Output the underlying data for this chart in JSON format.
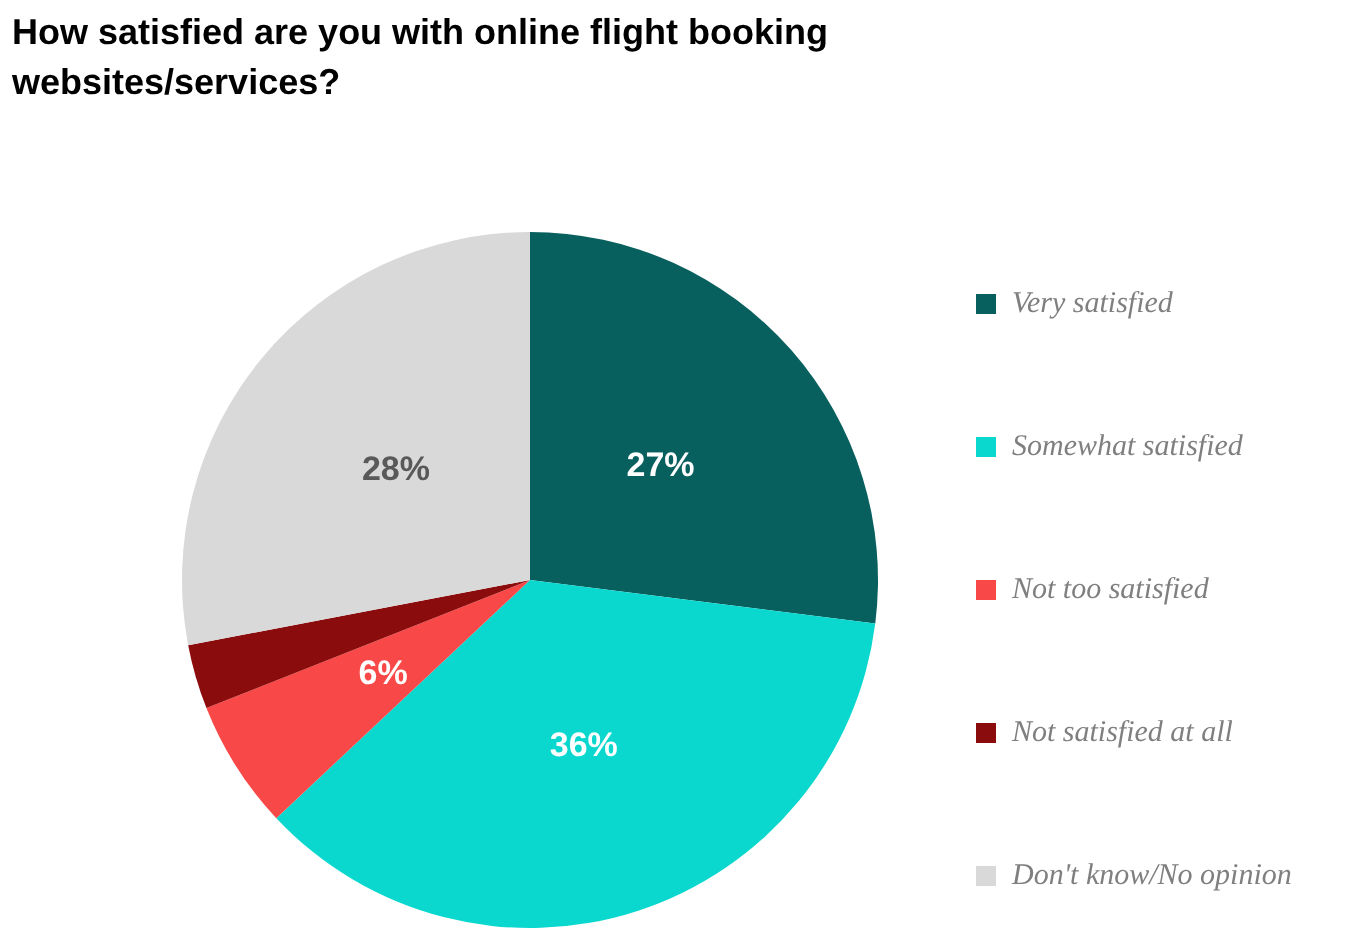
{
  "chart_data": {
    "type": "pie",
    "title": "How satisfied are you with online flight booking websites/services?",
    "categories": [
      "Very satisfied",
      "Somewhat satisfied",
      "Not too satisfied",
      "Not satisfied at all",
      "Don't know/No opinion"
    ],
    "values": [
      27,
      36,
      6,
      3,
      28
    ],
    "colors": [
      "#075f5e",
      "#0ad8cf",
      "#f84848",
      "#8b0c0c",
      "#d9d9d9"
    ],
    "value_labels": [
      "27%",
      "36%",
      "6%",
      null,
      "28%"
    ],
    "legend": "right"
  }
}
